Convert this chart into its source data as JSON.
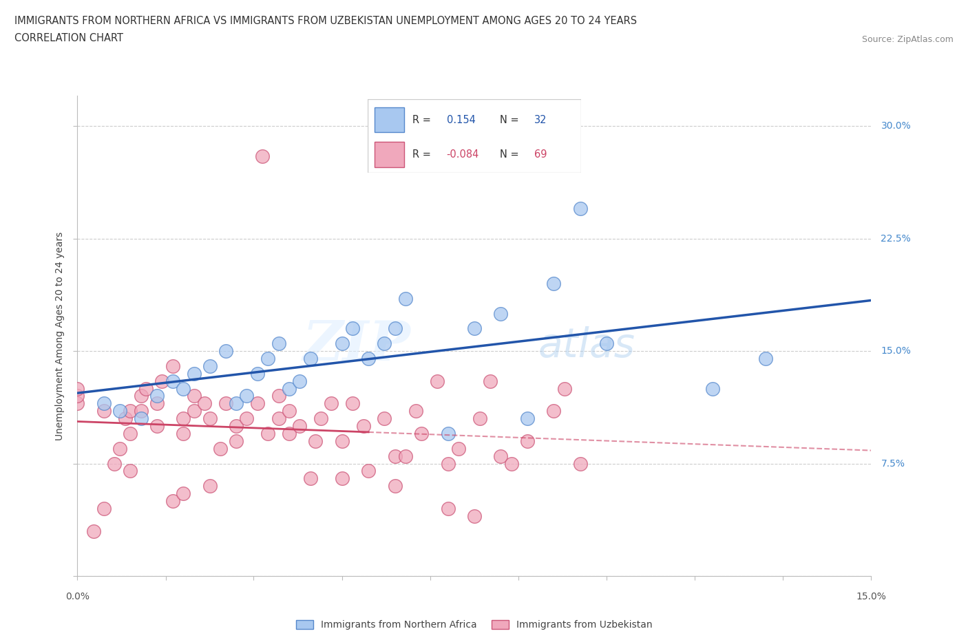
{
  "title_line1": "IMMIGRANTS FROM NORTHERN AFRICA VS IMMIGRANTS FROM UZBEKISTAN UNEMPLOYMENT AMONG AGES 20 TO 24 YEARS",
  "title_line2": "CORRELATION CHART",
  "source_text": "Source: ZipAtlas.com",
  "ylabel": "Unemployment Among Ages 20 to 24 years",
  "xlim": [
    0.0,
    0.15
  ],
  "ylim": [
    0.0,
    0.32
  ],
  "xticks": [
    0.0,
    0.0167,
    0.0333,
    0.05,
    0.0667,
    0.0833,
    0.1,
    0.1167,
    0.1333,
    0.15
  ],
  "xtick_labels_edge": [
    "0.0%",
    "15.0%"
  ],
  "ytick_labels": [
    "",
    "7.5%",
    "15.0%",
    "22.5%",
    "30.0%"
  ],
  "yticks": [
    0.0,
    0.075,
    0.15,
    0.225,
    0.3
  ],
  "R_blue": "0.154",
  "N_blue": "32",
  "R_pink": "-0.084",
  "N_pink": "69",
  "blue_color": "#a8c8f0",
  "pink_color": "#f0a8bc",
  "blue_edge_color": "#5588cc",
  "pink_edge_color": "#cc5577",
  "blue_line_color": "#2255aa",
  "pink_line_color": "#cc4466",
  "ytick_color": "#4488cc",
  "xtick_color": "#333333",
  "watermark_zip": "ZIP",
  "watermark_atlas": "atlas",
  "blue_scatter_x": [
    0.005,
    0.008,
    0.012,
    0.015,
    0.018,
    0.02,
    0.022,
    0.025,
    0.028,
    0.03,
    0.032,
    0.034,
    0.036,
    0.038,
    0.04,
    0.042,
    0.044,
    0.05,
    0.052,
    0.055,
    0.058,
    0.06,
    0.062,
    0.07,
    0.075,
    0.08,
    0.085,
    0.09,
    0.095,
    0.1,
    0.12,
    0.13
  ],
  "blue_scatter_y": [
    0.115,
    0.11,
    0.105,
    0.12,
    0.13,
    0.125,
    0.135,
    0.14,
    0.15,
    0.115,
    0.12,
    0.135,
    0.145,
    0.155,
    0.125,
    0.13,
    0.145,
    0.155,
    0.165,
    0.145,
    0.155,
    0.165,
    0.185,
    0.095,
    0.165,
    0.175,
    0.105,
    0.195,
    0.245,
    0.155,
    0.125,
    0.145
  ],
  "pink_scatter_x": [
    0.0,
    0.0,
    0.0,
    0.003,
    0.005,
    0.005,
    0.007,
    0.008,
    0.009,
    0.01,
    0.01,
    0.01,
    0.012,
    0.012,
    0.013,
    0.015,
    0.015,
    0.016,
    0.018,
    0.018,
    0.02,
    0.02,
    0.02,
    0.022,
    0.022,
    0.024,
    0.025,
    0.025,
    0.027,
    0.028,
    0.03,
    0.03,
    0.032,
    0.034,
    0.035,
    0.036,
    0.038,
    0.038,
    0.04,
    0.04,
    0.042,
    0.044,
    0.045,
    0.046,
    0.048,
    0.05,
    0.05,
    0.052,
    0.054,
    0.055,
    0.058,
    0.06,
    0.06,
    0.062,
    0.064,
    0.065,
    0.068,
    0.07,
    0.07,
    0.072,
    0.075,
    0.076,
    0.078,
    0.08,
    0.082,
    0.085,
    0.09,
    0.092,
    0.095
  ],
  "pink_scatter_y": [
    0.115,
    0.12,
    0.125,
    0.03,
    0.045,
    0.11,
    0.075,
    0.085,
    0.105,
    0.07,
    0.095,
    0.11,
    0.11,
    0.12,
    0.125,
    0.1,
    0.115,
    0.13,
    0.14,
    0.05,
    0.055,
    0.095,
    0.105,
    0.11,
    0.12,
    0.115,
    0.06,
    0.105,
    0.085,
    0.115,
    0.09,
    0.1,
    0.105,
    0.115,
    0.28,
    0.095,
    0.105,
    0.12,
    0.095,
    0.11,
    0.1,
    0.065,
    0.09,
    0.105,
    0.115,
    0.09,
    0.065,
    0.115,
    0.1,
    0.07,
    0.105,
    0.06,
    0.08,
    0.08,
    0.11,
    0.095,
    0.13,
    0.045,
    0.075,
    0.085,
    0.04,
    0.105,
    0.13,
    0.08,
    0.075,
    0.09,
    0.11,
    0.125,
    0.075
  ]
}
